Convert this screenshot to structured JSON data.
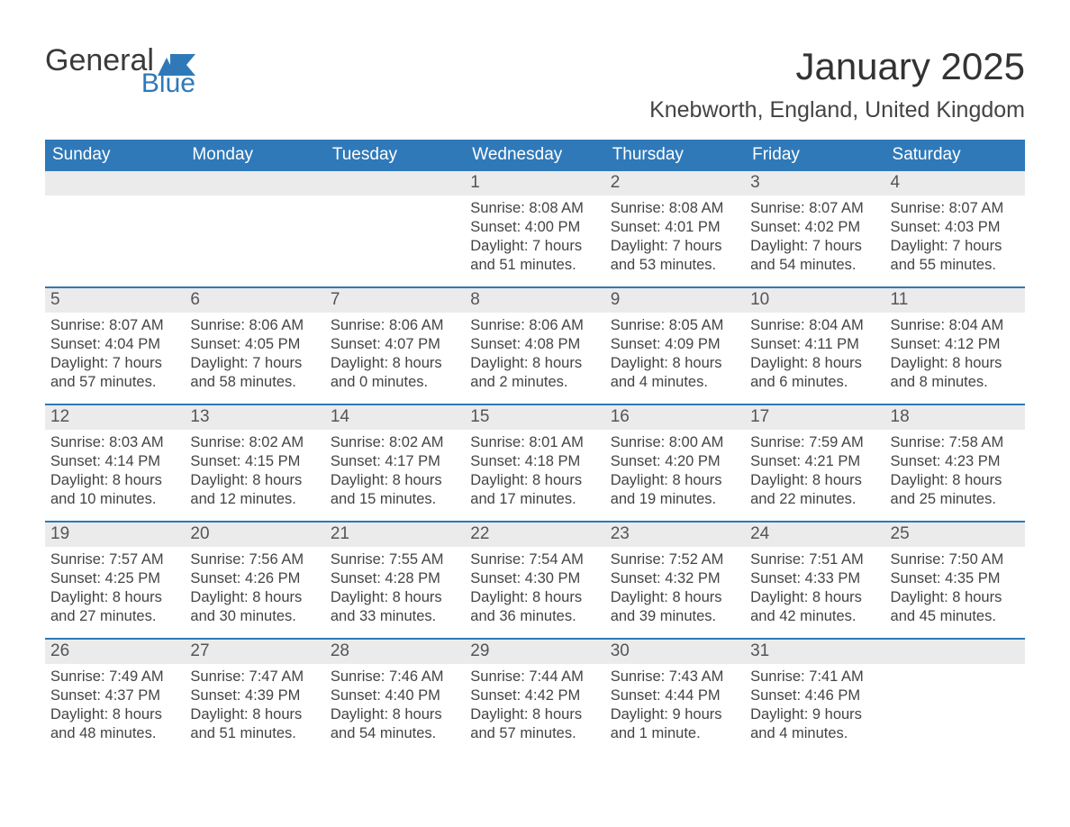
{
  "logo": {
    "text_general": "General",
    "text_blue": "Blue",
    "shape_color": "#2f79b9"
  },
  "title": "January 2025",
  "location": "Knebworth, England, United Kingdom",
  "colors": {
    "header_bg": "#2f79b9",
    "header_text": "#ffffff",
    "row_divider": "#2f79b9",
    "daynum_bg": "#ebebeb",
    "body_text": "#444444",
    "page_bg": "#ffffff"
  },
  "fonts": {
    "title_size_pt": 32,
    "location_size_pt": 19,
    "weekday_size_pt": 14,
    "daynum_size_pt": 14,
    "body_size_pt": 12
  },
  "weekdays": [
    "Sunday",
    "Monday",
    "Tuesday",
    "Wednesday",
    "Thursday",
    "Friday",
    "Saturday"
  ],
  "labels": {
    "sunrise": "Sunrise:",
    "sunset": "Sunset:",
    "daylight": "Daylight:"
  },
  "weeks": [
    [
      null,
      null,
      null,
      {
        "n": "1",
        "sunrise": "8:08 AM",
        "sunset": "4:00 PM",
        "daylight": "7 hours and 51 minutes."
      },
      {
        "n": "2",
        "sunrise": "8:08 AM",
        "sunset": "4:01 PM",
        "daylight": "7 hours and 53 minutes."
      },
      {
        "n": "3",
        "sunrise": "8:07 AM",
        "sunset": "4:02 PM",
        "daylight": "7 hours and 54 minutes."
      },
      {
        "n": "4",
        "sunrise": "8:07 AM",
        "sunset": "4:03 PM",
        "daylight": "7 hours and 55 minutes."
      }
    ],
    [
      {
        "n": "5",
        "sunrise": "8:07 AM",
        "sunset": "4:04 PM",
        "daylight": "7 hours and 57 minutes."
      },
      {
        "n": "6",
        "sunrise": "8:06 AM",
        "sunset": "4:05 PM",
        "daylight": "7 hours and 58 minutes."
      },
      {
        "n": "7",
        "sunrise": "8:06 AM",
        "sunset": "4:07 PM",
        "daylight": "8 hours and 0 minutes."
      },
      {
        "n": "8",
        "sunrise": "8:06 AM",
        "sunset": "4:08 PM",
        "daylight": "8 hours and 2 minutes."
      },
      {
        "n": "9",
        "sunrise": "8:05 AM",
        "sunset": "4:09 PM",
        "daylight": "8 hours and 4 minutes."
      },
      {
        "n": "10",
        "sunrise": "8:04 AM",
        "sunset": "4:11 PM",
        "daylight": "8 hours and 6 minutes."
      },
      {
        "n": "11",
        "sunrise": "8:04 AM",
        "sunset": "4:12 PM",
        "daylight": "8 hours and 8 minutes."
      }
    ],
    [
      {
        "n": "12",
        "sunrise": "8:03 AM",
        "sunset": "4:14 PM",
        "daylight": "8 hours and 10 minutes."
      },
      {
        "n": "13",
        "sunrise": "8:02 AM",
        "sunset": "4:15 PM",
        "daylight": "8 hours and 12 minutes."
      },
      {
        "n": "14",
        "sunrise": "8:02 AM",
        "sunset": "4:17 PM",
        "daylight": "8 hours and 15 minutes."
      },
      {
        "n": "15",
        "sunrise": "8:01 AM",
        "sunset": "4:18 PM",
        "daylight": "8 hours and 17 minutes."
      },
      {
        "n": "16",
        "sunrise": "8:00 AM",
        "sunset": "4:20 PM",
        "daylight": "8 hours and 19 minutes."
      },
      {
        "n": "17",
        "sunrise": "7:59 AM",
        "sunset": "4:21 PM",
        "daylight": "8 hours and 22 minutes."
      },
      {
        "n": "18",
        "sunrise": "7:58 AM",
        "sunset": "4:23 PM",
        "daylight": "8 hours and 25 minutes."
      }
    ],
    [
      {
        "n": "19",
        "sunrise": "7:57 AM",
        "sunset": "4:25 PM",
        "daylight": "8 hours and 27 minutes."
      },
      {
        "n": "20",
        "sunrise": "7:56 AM",
        "sunset": "4:26 PM",
        "daylight": "8 hours and 30 minutes."
      },
      {
        "n": "21",
        "sunrise": "7:55 AM",
        "sunset": "4:28 PM",
        "daylight": "8 hours and 33 minutes."
      },
      {
        "n": "22",
        "sunrise": "7:54 AM",
        "sunset": "4:30 PM",
        "daylight": "8 hours and 36 minutes."
      },
      {
        "n": "23",
        "sunrise": "7:52 AM",
        "sunset": "4:32 PM",
        "daylight": "8 hours and 39 minutes."
      },
      {
        "n": "24",
        "sunrise": "7:51 AM",
        "sunset": "4:33 PM",
        "daylight": "8 hours and 42 minutes."
      },
      {
        "n": "25",
        "sunrise": "7:50 AM",
        "sunset": "4:35 PM",
        "daylight": "8 hours and 45 minutes."
      }
    ],
    [
      {
        "n": "26",
        "sunrise": "7:49 AM",
        "sunset": "4:37 PM",
        "daylight": "8 hours and 48 minutes."
      },
      {
        "n": "27",
        "sunrise": "7:47 AM",
        "sunset": "4:39 PM",
        "daylight": "8 hours and 51 minutes."
      },
      {
        "n": "28",
        "sunrise": "7:46 AM",
        "sunset": "4:40 PM",
        "daylight": "8 hours and 54 minutes."
      },
      {
        "n": "29",
        "sunrise": "7:44 AM",
        "sunset": "4:42 PM",
        "daylight": "8 hours and 57 minutes."
      },
      {
        "n": "30",
        "sunrise": "7:43 AM",
        "sunset": "4:44 PM",
        "daylight": "9 hours and 1 minute."
      },
      {
        "n": "31",
        "sunrise": "7:41 AM",
        "sunset": "4:46 PM",
        "daylight": "9 hours and 4 minutes."
      },
      null
    ]
  ]
}
